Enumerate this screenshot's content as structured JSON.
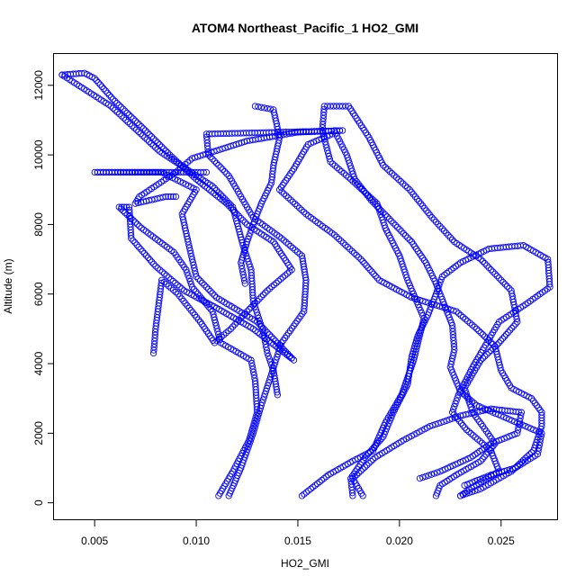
{
  "chart_data": {
    "type": "scatter",
    "title": "ATOM4 Northeast_Pacific_1 HO2_GMI",
    "xlabel": "HO2_GMI",
    "ylabel": "Altitude (m)",
    "xlim": [
      0.003,
      0.0278
    ],
    "ylim": [
      -500,
      12900
    ],
    "xticks": [
      0.005,
      0.01,
      0.015,
      0.02,
      0.025
    ],
    "xtick_labels": [
      "0.005",
      "0.010",
      "0.015",
      "0.020",
      "0.025"
    ],
    "yticks": [
      0,
      2000,
      4000,
      6000,
      8000,
      10000,
      12000
    ],
    "ytick_labels": [
      "0",
      "2000",
      "4000",
      "6000",
      "8000",
      "10000",
      "12000"
    ],
    "grid": false,
    "marker": "open-circle",
    "color": "#0000ff",
    "series": [
      {
        "points": [
          [
            0.0111,
            200
          ],
          [
            0.0118,
            900
          ],
          [
            0.0126,
            1800
          ],
          [
            0.013,
            2600
          ],
          [
            0.0129,
            3500
          ],
          [
            0.0127,
            4100
          ],
          [
            0.0112,
            4600
          ],
          [
            0.0108,
            5500
          ],
          [
            0.0098,
            6200
          ],
          [
            0.0095,
            6700
          ],
          [
            0.0089,
            7200
          ],
          [
            0.0073,
            7900
          ],
          [
            0.0062,
            8500
          ],
          [
            0.0067,
            8500
          ],
          [
            0.0068,
            7600
          ],
          [
            0.008,
            6800
          ],
          [
            0.0094,
            6100
          ],
          [
            0.011,
            5600
          ],
          [
            0.0128,
            5000
          ],
          [
            0.0148,
            4100
          ],
          [
            0.013,
            5200
          ],
          [
            0.011,
            5900
          ],
          [
            0.01,
            6500
          ],
          [
            0.0096,
            7500
          ],
          [
            0.0093,
            8300
          ],
          [
            0.01,
            9000
          ],
          [
            0.0083,
            9500
          ],
          [
            0.005,
            9500
          ],
          [
            0.0105,
            9500
          ]
        ]
      },
      {
        "points": [
          [
            0.0116,
            200
          ],
          [
            0.0122,
            1000
          ],
          [
            0.0128,
            2000
          ],
          [
            0.0132,
            2800
          ],
          [
            0.0137,
            3700
          ],
          [
            0.0142,
            4600
          ],
          [
            0.0153,
            5500
          ],
          [
            0.0154,
            6400
          ],
          [
            0.0152,
            7100
          ],
          [
            0.0142,
            7600
          ],
          [
            0.0128,
            8200
          ],
          [
            0.0122,
            8800
          ],
          [
            0.0116,
            9400
          ],
          [
            0.0106,
            10000
          ],
          [
            0.0105,
            10600
          ],
          [
            0.014,
            10650
          ],
          [
            0.0172,
            10700
          ],
          [
            0.015,
            10650
          ],
          [
            0.0125,
            10400
          ],
          [
            0.0098,
            9900
          ],
          [
            0.009,
            9500
          ],
          [
            0.0072,
            8800
          ],
          [
            0.007,
            8600
          ],
          [
            0.0085,
            8800
          ],
          [
            0.009,
            8800
          ]
        ]
      },
      {
        "points": [
          [
            0.0034,
            12300
          ],
          [
            0.0045,
            12350
          ],
          [
            0.005,
            12200
          ],
          [
            0.0059,
            11600
          ],
          [
            0.0075,
            10700
          ],
          [
            0.0087,
            10000
          ],
          [
            0.01,
            9300
          ],
          [
            0.0115,
            8600
          ],
          [
            0.0125,
            8000
          ],
          [
            0.0138,
            7500
          ],
          [
            0.0147,
            6700
          ],
          [
            0.0135,
            6100
          ],
          [
            0.0125,
            5500
          ],
          [
            0.0117,
            5000
          ],
          [
            0.0109,
            4600
          ],
          [
            0.0102,
            5200
          ],
          [
            0.0091,
            6000
          ],
          [
            0.0083,
            6400
          ],
          [
            0.008,
            5000
          ],
          [
            0.0079,
            4300
          ]
        ]
      },
      {
        "points": [
          [
            0.0034,
            12300
          ],
          [
            0.0058,
            11400
          ],
          [
            0.0082,
            10100
          ],
          [
            0.0108,
            9100
          ],
          [
            0.0118,
            8500
          ],
          [
            0.0123,
            7400
          ],
          [
            0.0127,
            6700
          ],
          [
            0.0128,
            5800
          ],
          [
            0.0133,
            4900
          ],
          [
            0.0135,
            4300
          ],
          [
            0.0138,
            3800
          ],
          [
            0.014,
            3100
          ]
        ]
      },
      {
        "points": [
          [
            0.0129,
            11400
          ],
          [
            0.0138,
            11300
          ],
          [
            0.0141,
            10500
          ],
          [
            0.0138,
            9700
          ],
          [
            0.0137,
            9200
          ],
          [
            0.0132,
            8600
          ],
          [
            0.0128,
            8000
          ],
          [
            0.0125,
            7500
          ],
          [
            0.0122,
            6900
          ],
          [
            0.0124,
            6300
          ]
        ]
      },
      {
        "points": [
          [
            0.0152,
            200
          ],
          [
            0.0165,
            800
          ],
          [
            0.0177,
            1200
          ],
          [
            0.0187,
            1500
          ],
          [
            0.0193,
            2300
          ],
          [
            0.0201,
            3100
          ],
          [
            0.0207,
            4100
          ],
          [
            0.0212,
            5300
          ],
          [
            0.0204,
            6400
          ],
          [
            0.02,
            7100
          ],
          [
            0.0193,
            7900
          ],
          [
            0.0189,
            8600
          ],
          [
            0.0176,
            9300
          ],
          [
            0.0166,
            9800
          ],
          [
            0.0162,
            10700
          ],
          [
            0.0163,
            11400
          ],
          [
            0.0175,
            11400
          ],
          [
            0.0185,
            10500
          ],
          [
            0.0192,
            9700
          ],
          [
            0.0205,
            9000
          ],
          [
            0.0216,
            8200
          ],
          [
            0.0227,
            7500
          ],
          [
            0.024,
            7000
          ],
          [
            0.0255,
            6100
          ],
          [
            0.0258,
            5200
          ],
          [
            0.0249,
            4600
          ],
          [
            0.024,
            4100
          ],
          [
            0.0232,
            3300
          ],
          [
            0.0236,
            2600
          ],
          [
            0.0241,
            2200
          ],
          [
            0.0247,
            1700
          ],
          [
            0.024,
            1200
          ],
          [
            0.0228,
            800
          ],
          [
            0.022,
            500
          ],
          [
            0.0218,
            200
          ]
        ]
      },
      {
        "points": [
          [
            0.0177,
            200
          ],
          [
            0.0176,
            700
          ],
          [
            0.0183,
            1300
          ],
          [
            0.0192,
            1900
          ],
          [
            0.0197,
            2600
          ],
          [
            0.0204,
            3400
          ],
          [
            0.0206,
            4200
          ],
          [
            0.0209,
            4800
          ],
          [
            0.0214,
            5400
          ],
          [
            0.0218,
            6000
          ],
          [
            0.0221,
            6500
          ],
          [
            0.023,
            6900
          ],
          [
            0.0244,
            7300
          ],
          [
            0.0261,
            7400
          ],
          [
            0.0273,
            7000
          ],
          [
            0.0274,
            6200
          ],
          [
            0.0262,
            5700
          ],
          [
            0.0249,
            5200
          ],
          [
            0.0243,
            4600
          ],
          [
            0.0236,
            3900
          ],
          [
            0.0229,
            3100
          ],
          [
            0.0226,
            2600
          ],
          [
            0.0233,
            2100
          ],
          [
            0.0245,
            1500
          ],
          [
            0.0249,
            900
          ],
          [
            0.024,
            600
          ],
          [
            0.023,
            200
          ]
        ]
      },
      {
        "points": [
          [
            0.0182,
            200
          ],
          [
            0.0177,
            700
          ],
          [
            0.0188,
            1300
          ],
          [
            0.0202,
            1800
          ],
          [
            0.0215,
            2200
          ],
          [
            0.023,
            2500
          ],
          [
            0.0245,
            2700
          ],
          [
            0.026,
            2600
          ],
          [
            0.0258,
            2000
          ],
          [
            0.0245,
            1700
          ],
          [
            0.0235,
            1300
          ],
          [
            0.022,
            900
          ],
          [
            0.021,
            700
          ]
        ]
      },
      {
        "points": [
          [
            0.0167,
            10600
          ],
          [
            0.0155,
            10300
          ],
          [
            0.0148,
            9600
          ],
          [
            0.0141,
            9000
          ],
          [
            0.0154,
            8300
          ],
          [
            0.0168,
            7700
          ],
          [
            0.0181,
            7000
          ],
          [
            0.019,
            6400
          ],
          [
            0.0206,
            5900
          ],
          [
            0.0228,
            5500
          ],
          [
            0.0238,
            5000
          ],
          [
            0.0247,
            4500
          ],
          [
            0.025,
            3800
          ],
          [
            0.0255,
            3300
          ],
          [
            0.0265,
            3000
          ],
          [
            0.027,
            2600
          ],
          [
            0.027,
            2200
          ],
          [
            0.0266,
            1500
          ],
          [
            0.0255,
            900
          ],
          [
            0.024,
            400
          ],
          [
            0.023,
            200
          ]
        ]
      },
      {
        "points": [
          [
            0.0168,
            10700
          ],
          [
            0.0174,
            10000
          ],
          [
            0.0178,
            9300
          ],
          [
            0.0186,
            8700
          ],
          [
            0.0196,
            8100
          ],
          [
            0.0206,
            7500
          ],
          [
            0.0213,
            6900
          ],
          [
            0.0218,
            6300
          ],
          [
            0.0222,
            5700
          ],
          [
            0.0226,
            5100
          ],
          [
            0.0227,
            4400
          ],
          [
            0.0225,
            3900
          ],
          [
            0.023,
            3200
          ],
          [
            0.0238,
            2800
          ],
          [
            0.025,
            2500
          ],
          [
            0.0262,
            2200
          ],
          [
            0.027,
            2000
          ],
          [
            0.0268,
            1400
          ],
          [
            0.0257,
            1000
          ],
          [
            0.0245,
            800
          ],
          [
            0.0232,
            500
          ]
        ]
      }
    ]
  }
}
